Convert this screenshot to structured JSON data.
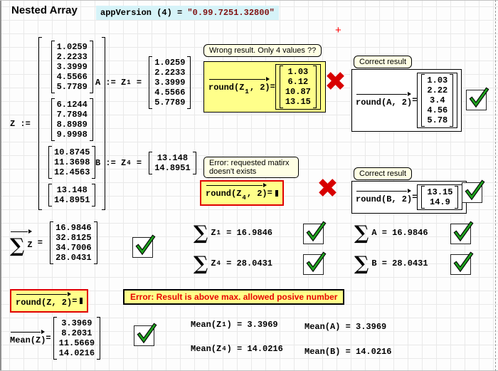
{
  "header": {
    "title": "Nested Array",
    "app_version_expr": "appVersion (4) = ",
    "app_version_value": "\"0.99.7251.32800\"",
    "cursor_glyph": "+"
  },
  "icons": {
    "cross_glyph": "✖"
  },
  "colors": {
    "highlight_yellow": "#ffff8a",
    "callout_cream": "#ffffe4",
    "highlight_cyan": "#d6f3f8",
    "error_red": "#e00000",
    "check_green": "#1fa11f",
    "string_maroon": "#7f1010"
  },
  "callouts": {
    "wrong_result": "Wrong result. Only 4 values ??",
    "error_matrix_line1": "Error: requested matirx",
    "error_matrix_line2": "doesn't exists",
    "correct_result_a": "Correct result",
    "correct_result_b": "Correct result",
    "error_overflow": "Error: Result is above max. allowed posive number"
  },
  "math": {
    "z_label": "Z := ",
    "z_groups": [
      [
        "1.0259",
        "2.2233",
        "3.3999",
        "4.5566",
        "5.7789"
      ],
      [
        "6.1244",
        "7.7894",
        "8.8989",
        "9.9998"
      ],
      [
        "10.8745",
        "11.3698",
        "12.4563"
      ],
      [
        "13.148",
        "14.8951"
      ]
    ],
    "a_pre": "A := Z",
    "a_sub": "1",
    "a_eq": " = ",
    "a_values": [
      "1.0259",
      "2.2233",
      "3.3999",
      "4.5566",
      "5.7789"
    ],
    "b_pre": "B := Z",
    "b_sub": "4",
    "b_eq": " = ",
    "b_values": [
      "13.148",
      "14.8951"
    ],
    "round_z1_pre": "round(Z",
    "round_z1_sub": "1",
    "round_z1_post": ", 2)",
    "round_z1_eq": "=",
    "round_z1_values": [
      "1.03",
      "6.12",
      "10.87",
      "13.15"
    ],
    "round_a_pre": "round(A, 2)",
    "round_a_eq": "=",
    "round_a_values": [
      "1.03",
      "2.22",
      "3.4",
      "4.56",
      "5.78"
    ],
    "round_z4_pre": "round(Z",
    "round_z4_sub": "4",
    "round_z4_post": ", 2)",
    "round_z4_eq": "=",
    "round_b_pre": "round(B, 2)",
    "round_b_eq": "=",
    "round_b_values": [
      "13.15",
      "14.9"
    ],
    "round_z_pre": "round(Z, 2)",
    "round_z_eq": "=",
    "sigma": "∑",
    "sum_z_base": "Z",
    "sum_z_eq": " = ",
    "sum_z_values": [
      "16.9846",
      "32.8125",
      "34.7006",
      "28.0431"
    ],
    "sum_z1_base": "Z",
    "sum_z1_sub": "1",
    "sum_z1_result": " = 16.9846",
    "sum_z4_base": "Z",
    "sum_z4_sub": "4",
    "sum_z4_result": " = 28.0431",
    "sum_a_base": "A",
    "sum_a_result": " = 16.9846",
    "sum_b_base": "B",
    "sum_b_result": " = 28.0431",
    "mean_z_pre": "Mean(Z)",
    "mean_z_eq": "=",
    "mean_z_values": [
      "3.3969",
      "8.2031",
      "11.5669",
      "14.0216"
    ],
    "mean_z1_pre": "Mean(Z",
    "mean_z1_sub": "1",
    "mean_z1_post": ") = 3.3969",
    "mean_z4_pre": "Mean(Z",
    "mean_z4_sub": "4",
    "mean_z4_post": ") = 14.0216",
    "mean_a": "Mean(A) = 3.3969",
    "mean_b": "Mean(B) = 14.0216"
  }
}
